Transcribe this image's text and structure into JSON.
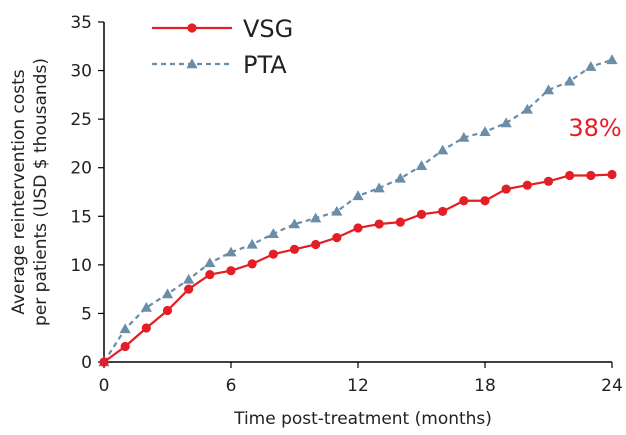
{
  "chart_data": {
    "type": "line",
    "xlabel": "Time post-treatment (months)",
    "ylabel_lines": [
      "Average reintervention costs",
      "per patients (USD $ thousands)"
    ],
    "xlim": [
      0,
      24
    ],
    "ylim": [
      0,
      35
    ],
    "xticks": [
      0,
      6,
      12,
      18,
      24
    ],
    "yticks": [
      0,
      5,
      10,
      15,
      20,
      25,
      30,
      35
    ],
    "grid": false,
    "legend_placement": "top-left",
    "annotation": {
      "text": "38%",
      "x": 23.2,
      "y": 24.2
    },
    "series": [
      {
        "name": "VSG",
        "color": "#e31e24",
        "line": "solid",
        "marker": "circle",
        "x": [
          0,
          1,
          2,
          3,
          4,
          5,
          6,
          7,
          8,
          9,
          10,
          11,
          12,
          13,
          14,
          15,
          16,
          17,
          18,
          19,
          20,
          21,
          22,
          23,
          24
        ],
        "y": [
          0,
          1.6,
          3.5,
          5.3,
          7.5,
          9.0,
          9.4,
          10.1,
          11.1,
          11.6,
          12.1,
          12.8,
          13.8,
          14.2,
          14.4,
          15.2,
          15.5,
          16.6,
          16.6,
          17.8,
          18.2,
          18.6,
          19.2,
          19.2,
          19.3
        ]
      },
      {
        "name": "PTA",
        "color": "#6a8da8",
        "line": "dashed",
        "marker": "triangle",
        "x": [
          0,
          1,
          2,
          3,
          4,
          5,
          6,
          7,
          8,
          9,
          10,
          11,
          12,
          13,
          14,
          15,
          16,
          17,
          18,
          19,
          20,
          21,
          22,
          23,
          24
        ],
        "y": [
          0,
          3.4,
          5.6,
          7.0,
          8.5,
          10.2,
          11.3,
          12.1,
          13.2,
          14.2,
          14.8,
          15.5,
          17.1,
          17.9,
          18.9,
          20.2,
          21.8,
          23.1,
          23.7,
          24.6,
          26.0,
          28.0,
          28.9,
          30.4,
          31.1
        ]
      }
    ]
  }
}
